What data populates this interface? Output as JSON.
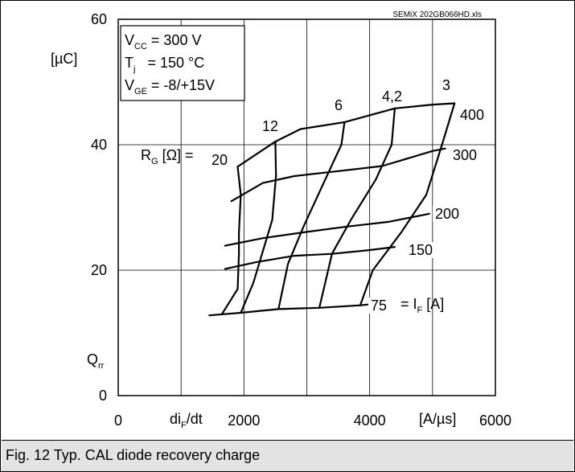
{
  "chart_data": {
    "type": "line",
    "source_tag": "SEMiX 202GB066HD.xls",
    "xlabel_main": "di",
    "xlabel_sub": "F",
    "xlabel_tail": "/dt",
    "xunit": "[A/µs]",
    "yunit": "[µC]",
    "ylabel_main": "Q",
    "ylabel_sub": "rr",
    "xlim": [
      0,
      6000
    ],
    "ylim": [
      0,
      60
    ],
    "xticks": [
      0,
      2000,
      4000,
      6000
    ],
    "yticks": [
      0,
      20,
      40,
      60
    ],
    "grid": true,
    "conditions": [
      {
        "main": "V",
        "sub": "CC",
        "rest": " = 300 V"
      },
      {
        "main": "T",
        "sub": "j",
        "rest": "   = 150 °C"
      },
      {
        "main": "V",
        "sub": "GE",
        "rest": " = -8/+15V"
      }
    ],
    "rg_label": {
      "main": "R",
      "sub": "G",
      "rest": " [Ω] ="
    },
    "if_label": {
      "pre": "= I",
      "sub": "F",
      "rest": " [A]"
    },
    "current_series": [
      {
        "label": "75",
        "points": [
          [
            1450,
            12.8
          ],
          [
            1950,
            13.2
          ],
          [
            2550,
            13.8
          ],
          [
            3200,
            14.0
          ],
          [
            3850,
            14.4
          ],
          [
            4150,
            14.7
          ]
        ]
      },
      {
        "label": "150",
        "points": [
          [
            1700,
            20.2
          ],
          [
            2200,
            21.3
          ],
          [
            2800,
            22.3
          ],
          [
            3400,
            22.6
          ],
          [
            4000,
            23.2
          ],
          [
            4400,
            23.7
          ]
        ]
      },
      {
        "label": "200",
        "points": [
          [
            1700,
            23.9
          ],
          [
            2300,
            25.1
          ],
          [
            3000,
            26.1
          ],
          [
            3600,
            26.9
          ],
          [
            4300,
            27.7
          ],
          [
            4950,
            29.0
          ]
        ]
      },
      {
        "label": "300",
        "points": [
          [
            1800,
            31.0
          ],
          [
            2300,
            33.9
          ],
          [
            2800,
            35.0
          ],
          [
            3500,
            35.8
          ],
          [
            4200,
            36.6
          ],
          [
            5000,
            39.0
          ],
          [
            5200,
            39.4
          ]
        ]
      },
      {
        "label": "400",
        "points": [
          [
            1900,
            36.5
          ],
          [
            2500,
            40.5
          ],
          [
            2900,
            42.5
          ],
          [
            3600,
            43.6
          ],
          [
            4400,
            45.8
          ],
          [
            5000,
            46.4
          ],
          [
            5350,
            46.6
          ]
        ]
      }
    ],
    "rg_series": [
      {
        "label": "20",
        "points": [
          [
            1900,
            36.5
          ],
          [
            1950,
            32.0
          ],
          [
            1920,
            26.0
          ],
          [
            1920,
            22.5
          ],
          [
            1900,
            17.0
          ],
          [
            1650,
            13.0
          ]
        ]
      },
      {
        "label": "12",
        "points": [
          [
            2500,
            40.5
          ],
          [
            2510,
            35.0
          ],
          [
            2450,
            28.0
          ],
          [
            2300,
            23.0
          ],
          [
            2150,
            18.0
          ],
          [
            1950,
            13.2
          ]
        ]
      },
      {
        "label": "6",
        "points": [
          [
            3600,
            43.6
          ],
          [
            3550,
            40.0
          ],
          [
            3250,
            33.5
          ],
          [
            2950,
            27.0
          ],
          [
            2700,
            21.0
          ],
          [
            2550,
            13.8
          ]
        ]
      },
      {
        "label": "4,2",
        "points": [
          [
            4400,
            45.8
          ],
          [
            4350,
            40.0
          ],
          [
            4100,
            34.5
          ],
          [
            3700,
            28.0
          ],
          [
            3400,
            22.6
          ],
          [
            3200,
            14.0
          ]
        ]
      },
      {
        "label": "3",
        "points": [
          [
            5350,
            46.6
          ],
          [
            5150,
            40.0
          ],
          [
            4900,
            32.0
          ],
          [
            4500,
            26.0
          ],
          [
            4050,
            20.0
          ],
          [
            3850,
            14.4
          ]
        ]
      }
    ]
  },
  "caption": "Fig. 12 Typ. CAL diode recovery charge"
}
